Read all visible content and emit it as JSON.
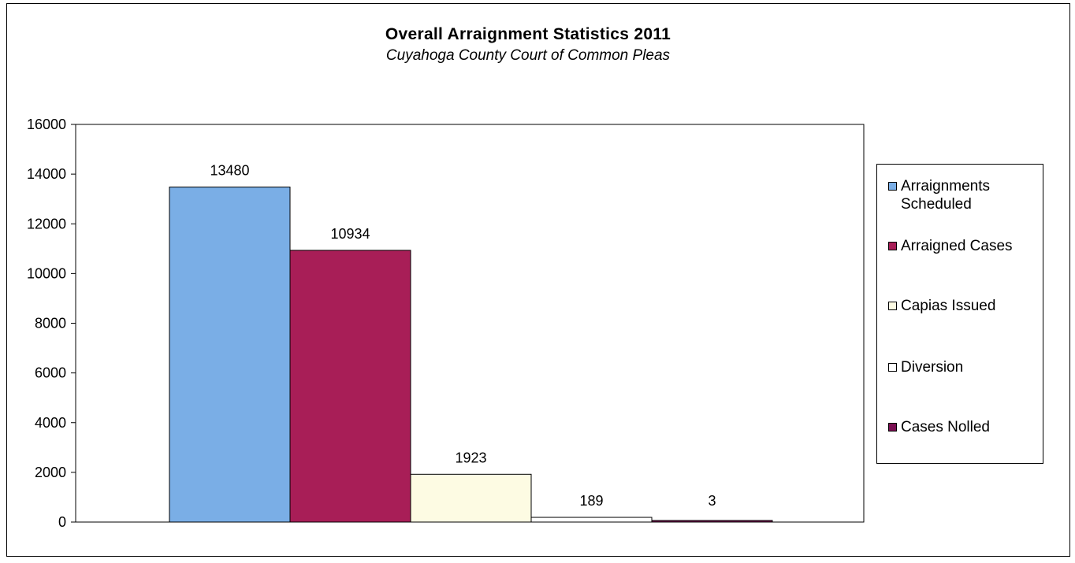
{
  "chart_data": {
    "type": "bar",
    "title": "Overall Arraignment Statistics 2011",
    "subtitle": "Cuyahoga County Court of Common Pleas",
    "xlabel": "",
    "ylabel": "",
    "ylim": [
      0,
      16000
    ],
    "yticks": [
      "0",
      "2000",
      "4000",
      "6000",
      "8000",
      "10000",
      "12000",
      "14000",
      "16000"
    ],
    "grid": false,
    "legend_position": "right",
    "series": [
      {
        "name": "Arraignments Scheduled",
        "value": 13480,
        "label": "13480",
        "color": "#7aaee6"
      },
      {
        "name": "Arraigned Cases",
        "value": 10934,
        "label": "10934",
        "color": "#a81e57"
      },
      {
        "name": "Capias Issued",
        "value": 1923,
        "label": "1923",
        "color": "#fdfbe3"
      },
      {
        "name": "Diversion",
        "value": 189,
        "label": "189",
        "color": "#ffffff"
      },
      {
        "name": "Cases Nolled",
        "value": 3,
        "label": "3",
        "color": "#7a0f52"
      }
    ]
  }
}
